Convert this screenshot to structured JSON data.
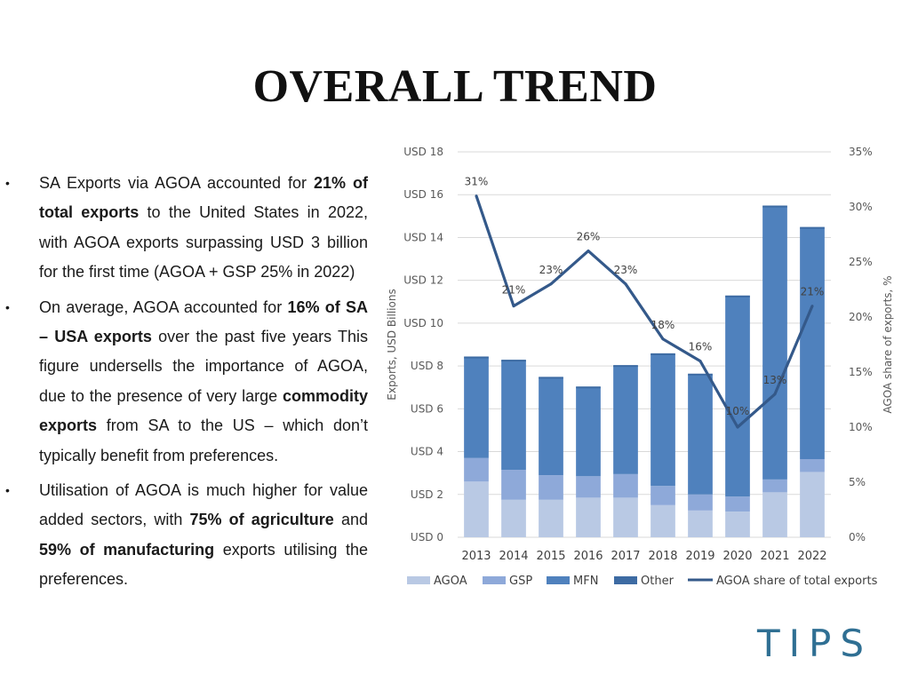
{
  "slide": {
    "title": "OVERALL TREND"
  },
  "bullets": [
    {
      "parts": [
        {
          "text": "SA Exports via AGOA accounted for ",
          "bold": false
        },
        {
          "text": "21% of total exports",
          "bold": true
        },
        {
          "text": " to the United States in 2022, with AGOA exports surpassing USD 3 billion for the first time (AGOA + GSP 25% in 2022)",
          "bold": false
        }
      ]
    },
    {
      "parts": [
        {
          "text": "On average, AGOA accounted for ",
          "bold": false
        },
        {
          "text": "16% of SA – USA exports",
          "bold": true
        },
        {
          "text": " over the past five years This figure undersells the importance of AGOA, due to the presence of very large ",
          "bold": false
        },
        {
          "text": "commodity exports",
          "bold": true
        },
        {
          "text": " from SA to the US – which don’t typically benefit from preferences.",
          "bold": false
        }
      ]
    },
    {
      "parts": [
        {
          "text": "Utilisation of AGOA is much higher for value added sectors, with ",
          "bold": false
        },
        {
          "text": "75% of agriculture",
          "bold": true
        },
        {
          "text": " and ",
          "bold": false
        },
        {
          "text": "59% of manufacturing",
          "bold": true
        },
        {
          "text": " exports utilising the preferences.",
          "bold": false
        }
      ]
    }
  ],
  "logo": {
    "text": "TIPS"
  },
  "chart_data": {
    "type": "bar",
    "stacked": true,
    "categories": [
      "2013",
      "2014",
      "2015",
      "2016",
      "2017",
      "2018",
      "2019",
      "2020",
      "2021",
      "2022"
    ],
    "series": [
      {
        "name": "AGOA",
        "color": "#b9c9e4",
        "values": [
          2.6,
          1.75,
          1.75,
          1.85,
          1.85,
          1.5,
          1.25,
          1.2,
          2.1,
          3.05
        ]
      },
      {
        "name": "GSP",
        "color": "#8ea9d9",
        "values": [
          1.1,
          1.4,
          1.15,
          1.0,
          1.1,
          0.9,
          0.75,
          0.7,
          0.6,
          0.6
        ]
      },
      {
        "name": "MFN",
        "color": "#4f81bd",
        "values": [
          4.7,
          5.1,
          4.55,
          4.15,
          5.05,
          6.15,
          5.6,
          9.35,
          12.75,
          10.8
        ]
      },
      {
        "name": "Other",
        "color": "#3d6ba3",
        "values": [
          0,
          0,
          0,
          0,
          0,
          0,
          0,
          0,
          0,
          0
        ]
      }
    ],
    "line_series": {
      "name": "AGOA share of total exports",
      "color": "#34598a",
      "values": [
        31,
        21,
        23,
        26,
        23,
        18,
        16,
        10,
        13,
        21
      ],
      "labels": [
        "31%",
        "21%",
        "23%",
        "26%",
        "23%",
        "18%",
        "16%",
        "10%",
        "13%",
        "21%"
      ]
    },
    "y_left": {
      "label": "Exports, USD Billions",
      "range": [
        0,
        18
      ],
      "ticks": [
        "USD 0",
        "USD 2",
        "USD 4",
        "USD 6",
        "USD 8",
        "USD 10",
        "USD 12",
        "USD 14",
        "USD 16",
        "USD 18"
      ],
      "tick_values": [
        0,
        2,
        4,
        6,
        8,
        10,
        12,
        14,
        16,
        18
      ]
    },
    "y_right": {
      "label": "AGOA share of exports, %",
      "range": [
        0,
        35
      ],
      "ticks": [
        "0%",
        "5%",
        "10%",
        "15%",
        "20%",
        "25%",
        "30%",
        "35%"
      ],
      "tick_values": [
        0,
        5,
        10,
        15,
        20,
        25,
        30,
        35
      ]
    },
    "grid": true,
    "legend_position": "bottom",
    "legend": [
      "AGOA",
      "GSP",
      "MFN",
      "Other",
      "AGOA share of total exports"
    ]
  }
}
